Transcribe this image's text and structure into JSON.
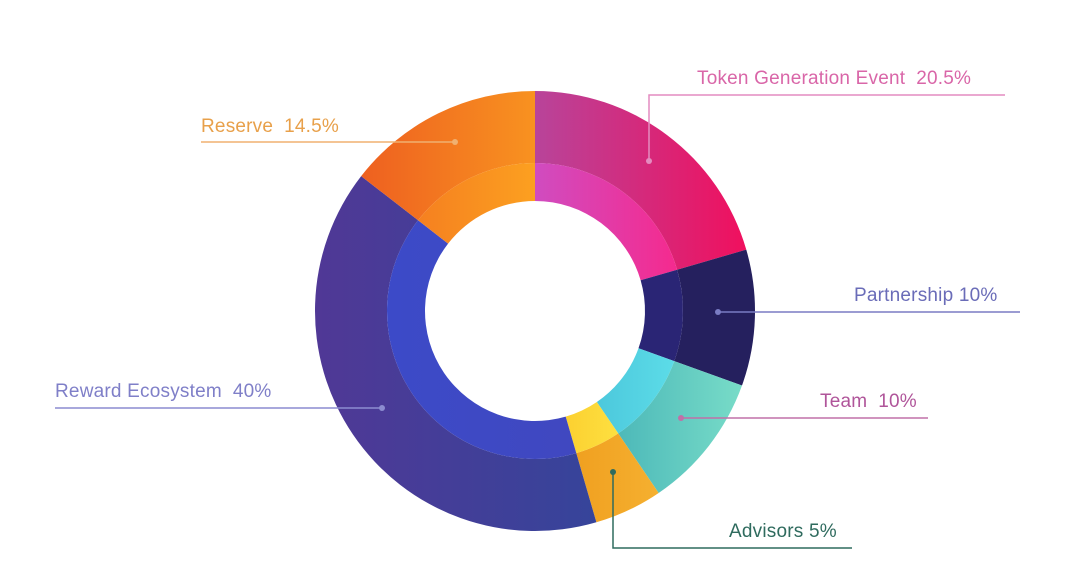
{
  "chart_data": {
    "type": "pie",
    "variant": "donut",
    "title": "",
    "start": "top",
    "direction": "clockwise",
    "slices": [
      {
        "label": "Token Generation Event",
        "value": 20.5,
        "value_label": "20.5%",
        "outer": [
          "#b8449a",
          "#f0105e"
        ],
        "inner": [
          "#d04cc0",
          "#f52a8e"
        ],
        "text_color": "#d966a8"
      },
      {
        "label": "Partnership",
        "value": 10,
        "value_label": "10%",
        "outer": [
          "#25205e",
          "#25205e"
        ],
        "inner": [
          "#2a2575",
          "#2a2575"
        ],
        "text_color": "#6a6cb8"
      },
      {
        "label": "Team",
        "value": 10,
        "value_label": "10%",
        "outer": [
          "#4db9b9",
          "#78dcc8"
        ],
        "inner": [
          "#4cc8dc",
          "#5cdce8"
        ],
        "text_color": "#b0559a"
      },
      {
        "label": "Advisors",
        "value": 5,
        "value_label": "5%",
        "outer": [
          "#f0a020",
          "#f5b030"
        ],
        "inner": [
          "#fcd030",
          "#fde040"
        ],
        "text_color": "#2f6b5e"
      },
      {
        "label": "Reward Ecosystem",
        "value": 40,
        "value_label": "40%",
        "outer": [
          "#503896",
          "#36449a"
        ],
        "inner": [
          "#3c4ac8",
          "#4048c0"
        ],
        "text_color": "#7f7fc8"
      },
      {
        "label": "Reserve",
        "value": 14.5,
        "value_label": "14.5%",
        "outer": [
          "#ee6020",
          "#f89220"
        ],
        "inner": [
          "#f58020",
          "#fca020"
        ],
        "text_color": "#e8a04a"
      }
    ]
  }
}
